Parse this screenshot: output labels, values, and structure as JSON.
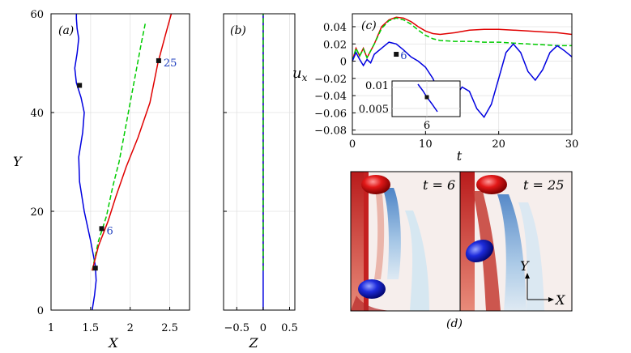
{
  "chart_data": [
    {
      "panel_label": "(a)",
      "type": "line",
      "xlabel": "X",
      "ylabel": "Y",
      "xlim": [
        1,
        2.75
      ],
      "ylim": [
        0,
        60
      ],
      "xticks": [
        "1",
        "1.5",
        "2",
        "2.5"
      ],
      "yticks": [
        "0",
        "20",
        "40",
        "60"
      ],
      "grid": true,
      "series": [
        {
          "color": "#0000e0",
          "style": "solid",
          "x": [
            1.52,
            1.55,
            1.57,
            1.56,
            1.5,
            1.42,
            1.36,
            1.35,
            1.4,
            1.42,
            1.38,
            1.32,
            1.3,
            1.33,
            1.35,
            1.33,
            1.32,
            1.32
          ],
          "y": [
            0,
            3,
            6,
            9,
            14,
            20,
            26,
            31,
            36,
            40,
            43,
            46,
            49,
            52,
            55,
            57,
            59,
            60
          ]
        },
        {
          "color": "#00cc00",
          "style": "dashed",
          "x": [
            1.52,
            1.6,
            1.7,
            1.78,
            1.86,
            1.93,
            2.0,
            2.07,
            2.14,
            2.19
          ],
          "y": [
            8,
            14,
            19,
            25,
            30,
            36,
            42,
            48,
            54,
            58
          ]
        },
        {
          "color": "#e00000",
          "style": "solid",
          "x": [
            1.52,
            1.6,
            1.72,
            1.82,
            1.95,
            2.1,
            2.25,
            2.35,
            2.45,
            2.52
          ],
          "y": [
            8,
            13,
            18,
            23,
            29,
            35,
            42,
            50,
            56,
            60
          ]
        }
      ],
      "markers": [
        {
          "x": 1.36,
          "y": 45.5,
          "label": ""
        },
        {
          "x": 1.64,
          "y": 16.5,
          "label": "6"
        },
        {
          "x": 1.56,
          "y": 8.5,
          "label": ""
        },
        {
          "x": 2.36,
          "y": 50.5,
          "label": "25"
        }
      ]
    },
    {
      "panel_label": "(b)",
      "type": "line",
      "xlabel": "Z",
      "ylabel": "",
      "xlim": [
        -0.75,
        0.6
      ],
      "ylim": [
        0,
        60
      ],
      "xticks": [
        "−0.5",
        "0",
        "0.5"
      ],
      "yticks": [],
      "grid": true,
      "series": [
        {
          "color": "#e00000",
          "style": "solid",
          "x": [
            0,
            0
          ],
          "y": [
            8,
            60
          ]
        },
        {
          "color": "#0000e0",
          "style": "solid",
          "x": [
            0,
            0
          ],
          "y": [
            0,
            60
          ]
        },
        {
          "color": "#00cc00",
          "style": "dashed",
          "x": [
            0,
            0
          ],
          "y": [
            8,
            60
          ]
        }
      ]
    },
    {
      "panel_label": "(c)",
      "type": "line",
      "xlabel": "t",
      "ylabel": "u_x",
      "xlim": [
        0,
        30
      ],
      "ylim": [
        -0.085,
        0.055
      ],
      "xticks": [
        "0",
        "10",
        "20",
        "30"
      ],
      "yticks": [
        "0.04",
        "0.02",
        "0",
        "−0.02",
        "−0.04",
        "−0.06",
        "−0.08"
      ],
      "grid": true,
      "series": [
        {
          "color": "#e00000",
          "style": "solid",
          "x": [
            0,
            0.5,
            1,
            1.5,
            2,
            3,
            4,
            5,
            6,
            7,
            8,
            9,
            10,
            11,
            12,
            14,
            16,
            18,
            20,
            22,
            24,
            26,
            28,
            30
          ],
          "y": [
            0.0,
            0.015,
            0.006,
            0.015,
            0.004,
            0.02,
            0.04,
            0.048,
            0.051,
            0.05,
            0.046,
            0.04,
            0.035,
            0.032,
            0.031,
            0.033,
            0.036,
            0.037,
            0.037,
            0.036,
            0.035,
            0.034,
            0.033,
            0.031
          ]
        },
        {
          "color": "#00cc00",
          "style": "dashed",
          "x": [
            0,
            0.5,
            1,
            1.5,
            2,
            3,
            4,
            5,
            6,
            7,
            8,
            9,
            10,
            11,
            12,
            14,
            16,
            18,
            20,
            22,
            24,
            26,
            28,
            30
          ],
          "y": [
            0.0,
            0.015,
            0.006,
            0.014,
            0.004,
            0.02,
            0.038,
            0.047,
            0.05,
            0.048,
            0.043,
            0.036,
            0.03,
            0.026,
            0.024,
            0.023,
            0.023,
            0.022,
            0.022,
            0.021,
            0.02,
            0.019,
            0.018,
            0.018
          ]
        },
        {
          "color": "#0000e0",
          "style": "solid",
          "x": [
            0,
            0.5,
            1,
            1.5,
            2,
            2.5,
            3,
            4,
            5,
            6,
            7,
            8,
            9,
            10,
            11,
            12,
            13,
            14,
            15,
            16,
            17,
            18,
            19,
            20,
            21,
            22,
            23,
            24,
            25,
            26,
            27,
            28,
            29,
            30
          ],
          "y": [
            0.0,
            0.01,
            0.002,
            -0.005,
            0.002,
            -0.002,
            0.008,
            0.015,
            0.022,
            0.02,
            0.013,
            0.005,
            0.0,
            -0.007,
            -0.02,
            -0.04,
            -0.048,
            -0.042,
            -0.03,
            -0.035,
            -0.055,
            -0.065,
            -0.05,
            -0.02,
            0.01,
            0.02,
            0.01,
            -0.012,
            -0.022,
            -0.01,
            0.01,
            0.018,
            0.012,
            0.005
          ]
        }
      ],
      "markers": [
        {
          "x": 6,
          "y": 0.008,
          "label": "6"
        }
      ],
      "inset": {
        "yticks": [
          "0.01",
          "0.005"
        ],
        "xtick": "6",
        "marker": {
          "x": 6,
          "y": 0.008
        }
      }
    }
  ],
  "figure_d": {
    "panel_label": "(d)",
    "left_label": "t = 6",
    "right_label": "t = 25",
    "axis_y": "Y",
    "axis_x": "X"
  }
}
